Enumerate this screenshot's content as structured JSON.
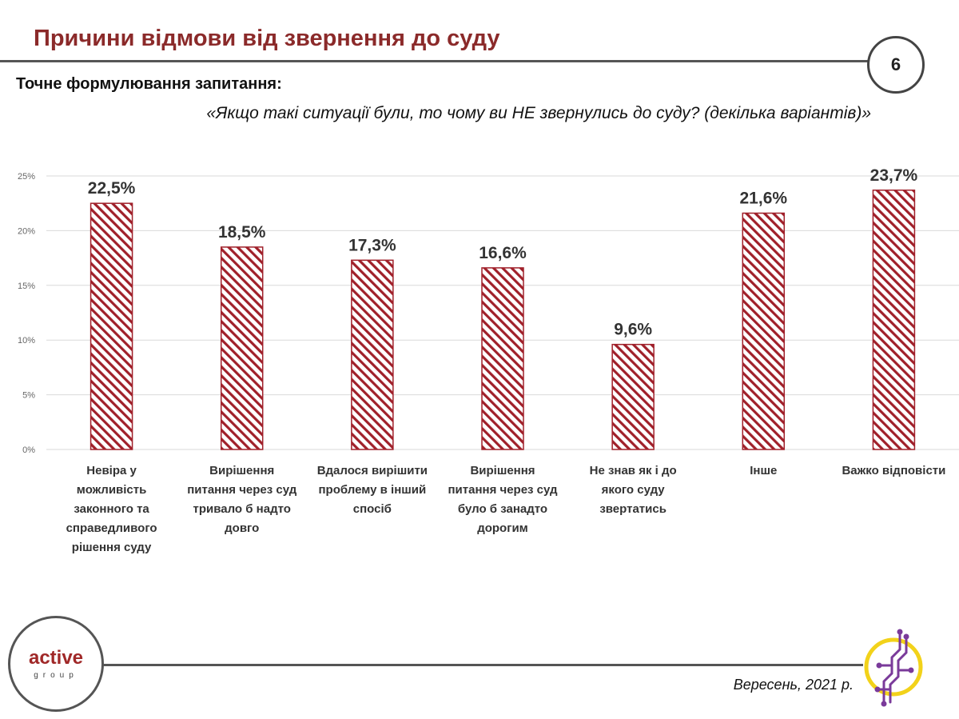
{
  "header": {
    "title": "Причини відмови від звернення до суду",
    "page_number": "6",
    "question_label": "Точне формулювання запитання:",
    "question_text": "«Якщо такі ситуації були, то чому ви НЕ звернулись до суду? (декілька варіантів)»"
  },
  "chart_data": {
    "type": "bar",
    "categories": [
      [
        "Невіра у",
        "можливість",
        "законного та",
        "справедливого",
        "рішення суду"
      ],
      [
        "Вирішення",
        "питання через суд",
        "тривало б надто",
        "довго"
      ],
      [
        "Вдалося вирішити",
        "проблему в інший",
        "спосіб"
      ],
      [
        "Вирішення",
        "питання через суд",
        "було б занадто",
        "дорогим"
      ],
      [
        "Не знав як і до",
        "якого суду",
        "звертатись"
      ],
      [
        "Інше"
      ],
      [
        "Важко відповісти"
      ]
    ],
    "values": [
      22.5,
      18.5,
      17.3,
      16.6,
      9.6,
      21.6,
      23.7
    ],
    "value_labels": [
      "22,5%",
      "18,5%",
      "17,3%",
      "16,6%",
      "9,6%",
      "21,6%",
      "23,7%"
    ],
    "yticks": [
      "0%",
      "5%",
      "10%",
      "15%",
      "20%",
      "25%"
    ],
    "ylim": [
      0,
      25
    ],
    "grid": true,
    "bar_style": "diagonal-hatch",
    "bar_color": "#a0202a"
  },
  "footer": {
    "logo_word": "active",
    "logo_sub": "group",
    "date": "Вересень, 2021 р."
  },
  "icons": {
    "left_logo": "active-group-logo",
    "right_logo": "circuit-figure-logo"
  },
  "colors": {
    "title": "#8b2a2a",
    "accent": "#a0202a",
    "ring": "#f2d21a",
    "circuit": "#7a3a9a"
  }
}
